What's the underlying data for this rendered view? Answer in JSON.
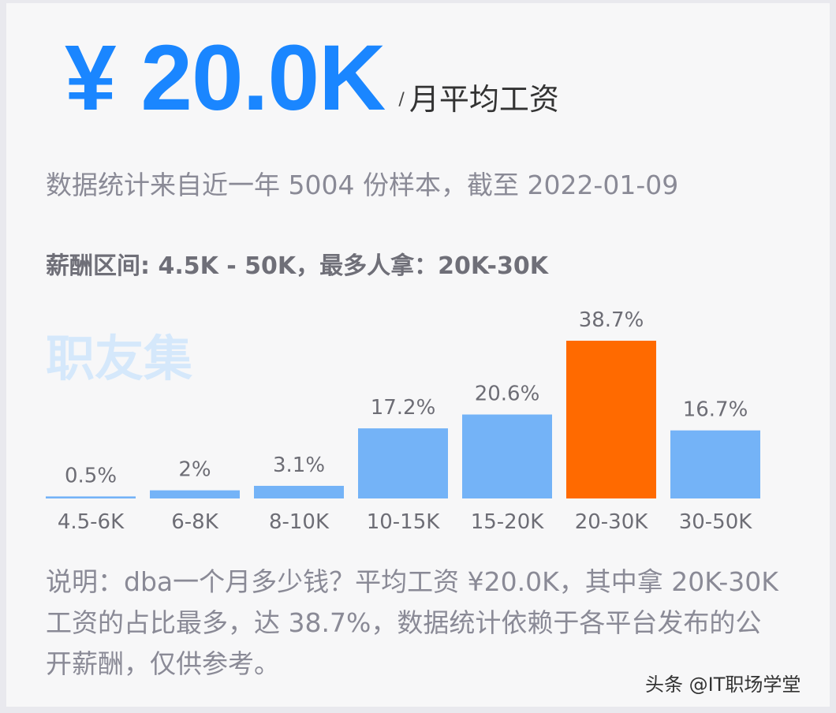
{
  "header": {
    "avg_salary": "¥ 20.0K",
    "slash": "/",
    "unit_label": "月平均工资"
  },
  "sample_note": "数据统计来自近一年 5004 份样本，截至 2022-01-09",
  "salary_range": "薪酬区间: 4.5K - 50K，最多人拿：20K-30K",
  "watermark": "职友集",
  "chart_data": {
    "type": "bar",
    "categories": [
      "4.5-6K",
      "6-8K",
      "8-10K",
      "10-15K",
      "15-20K",
      "20-30K",
      "30-50K"
    ],
    "values": [
      0.5,
      2,
      3.1,
      17.2,
      20.6,
      38.7,
      16.7
    ],
    "value_labels": [
      "0.5%",
      "2%",
      "3.1%",
      "17.2%",
      "20.6%",
      "38.7%",
      "16.7%"
    ],
    "highlight_index": 5,
    "colors": {
      "bar": "#74b3f7",
      "highlight": "#ff6a00"
    },
    "ylim": [
      0,
      38.7
    ],
    "grid": false
  },
  "description": "说明：dba一个月多少钱？平均工资 ¥20.0K，其中拿 20K-30K 工资的占比最多，达 38.7%，数据统计依赖于各平台发布的公开薪酬，仅供参考。",
  "credit": "头条 @IT职场学堂"
}
